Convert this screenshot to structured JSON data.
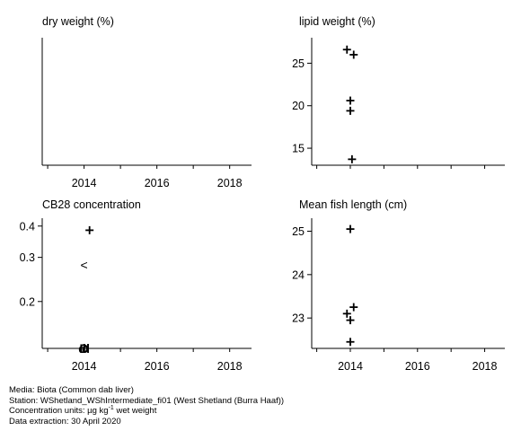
{
  "chart_data": [
    {
      "type": "scatter",
      "title": "dry weight (%)",
      "x_ticks": [
        "2014",
        "2016",
        "2018"
      ],
      "y_ticks": [],
      "points": []
    },
    {
      "type": "scatter",
      "title": "lipid weight (%)",
      "ylim": [
        13,
        28
      ],
      "x_ticks": [],
      "y_ticks": [
        15,
        20,
        25
      ],
      "points": [
        {
          "x": 2013.9,
          "y": 26.6,
          "marker": "+"
        },
        {
          "x": 2014.1,
          "y": 26.0,
          "marker": "+"
        },
        {
          "x": 2014.0,
          "y": 20.6,
          "marker": "+"
        },
        {
          "x": 2014.0,
          "y": 19.4,
          "marker": "+"
        },
        {
          "x": 2014.05,
          "y": 13.7,
          "marker": "+"
        }
      ]
    },
    {
      "type": "scatter",
      "title": "CB28 concentration",
      "log_scale": true,
      "ylim": [
        0.13,
        0.43
      ],
      "x_ticks": [
        "2014",
        "2016",
        "2018"
      ],
      "y_ticks": [
        0.2,
        0.3,
        0.4
      ],
      "points": [
        {
          "x": 2014.15,
          "y": 0.385,
          "marker": "+"
        },
        {
          "x": 2014.0,
          "y": 0.28,
          "marker": "<"
        },
        {
          "x": 2013.95,
          "y": 0.13,
          "marker": "d"
        },
        {
          "x": 2014.05,
          "y": 0.13,
          "marker": "d"
        },
        {
          "x": 2014.0,
          "y": 0.13,
          "marker": "D"
        }
      ]
    },
    {
      "type": "scatter",
      "title": "Mean fish length (cm)",
      "ylim": [
        22.3,
        25.3
      ],
      "x_ticks": [
        "2014",
        "2016",
        "2018"
      ],
      "y_ticks": [
        23,
        24,
        25
      ],
      "points": [
        {
          "x": 2014.0,
          "y": 25.05,
          "marker": "+"
        },
        {
          "x": 2014.1,
          "y": 23.25,
          "marker": "+"
        },
        {
          "x": 2013.9,
          "y": 23.1,
          "marker": "+"
        },
        {
          "x": 2014.0,
          "y": 22.95,
          "marker": "+"
        },
        {
          "x": 2014.0,
          "y": 22.45,
          "marker": "+"
        }
      ]
    }
  ],
  "footer": {
    "media": "Media: Biota (Common dab liver)",
    "station": "Station: WShetland_WShIntermediate_fi01 (West Shetland (Burra Haaf))",
    "units_prefix": "Concentration units:  µg kg",
    "units_exp": "-1",
    "units_suffix": " wet weight",
    "extraction": "Data extraction: 30 April 2020"
  }
}
